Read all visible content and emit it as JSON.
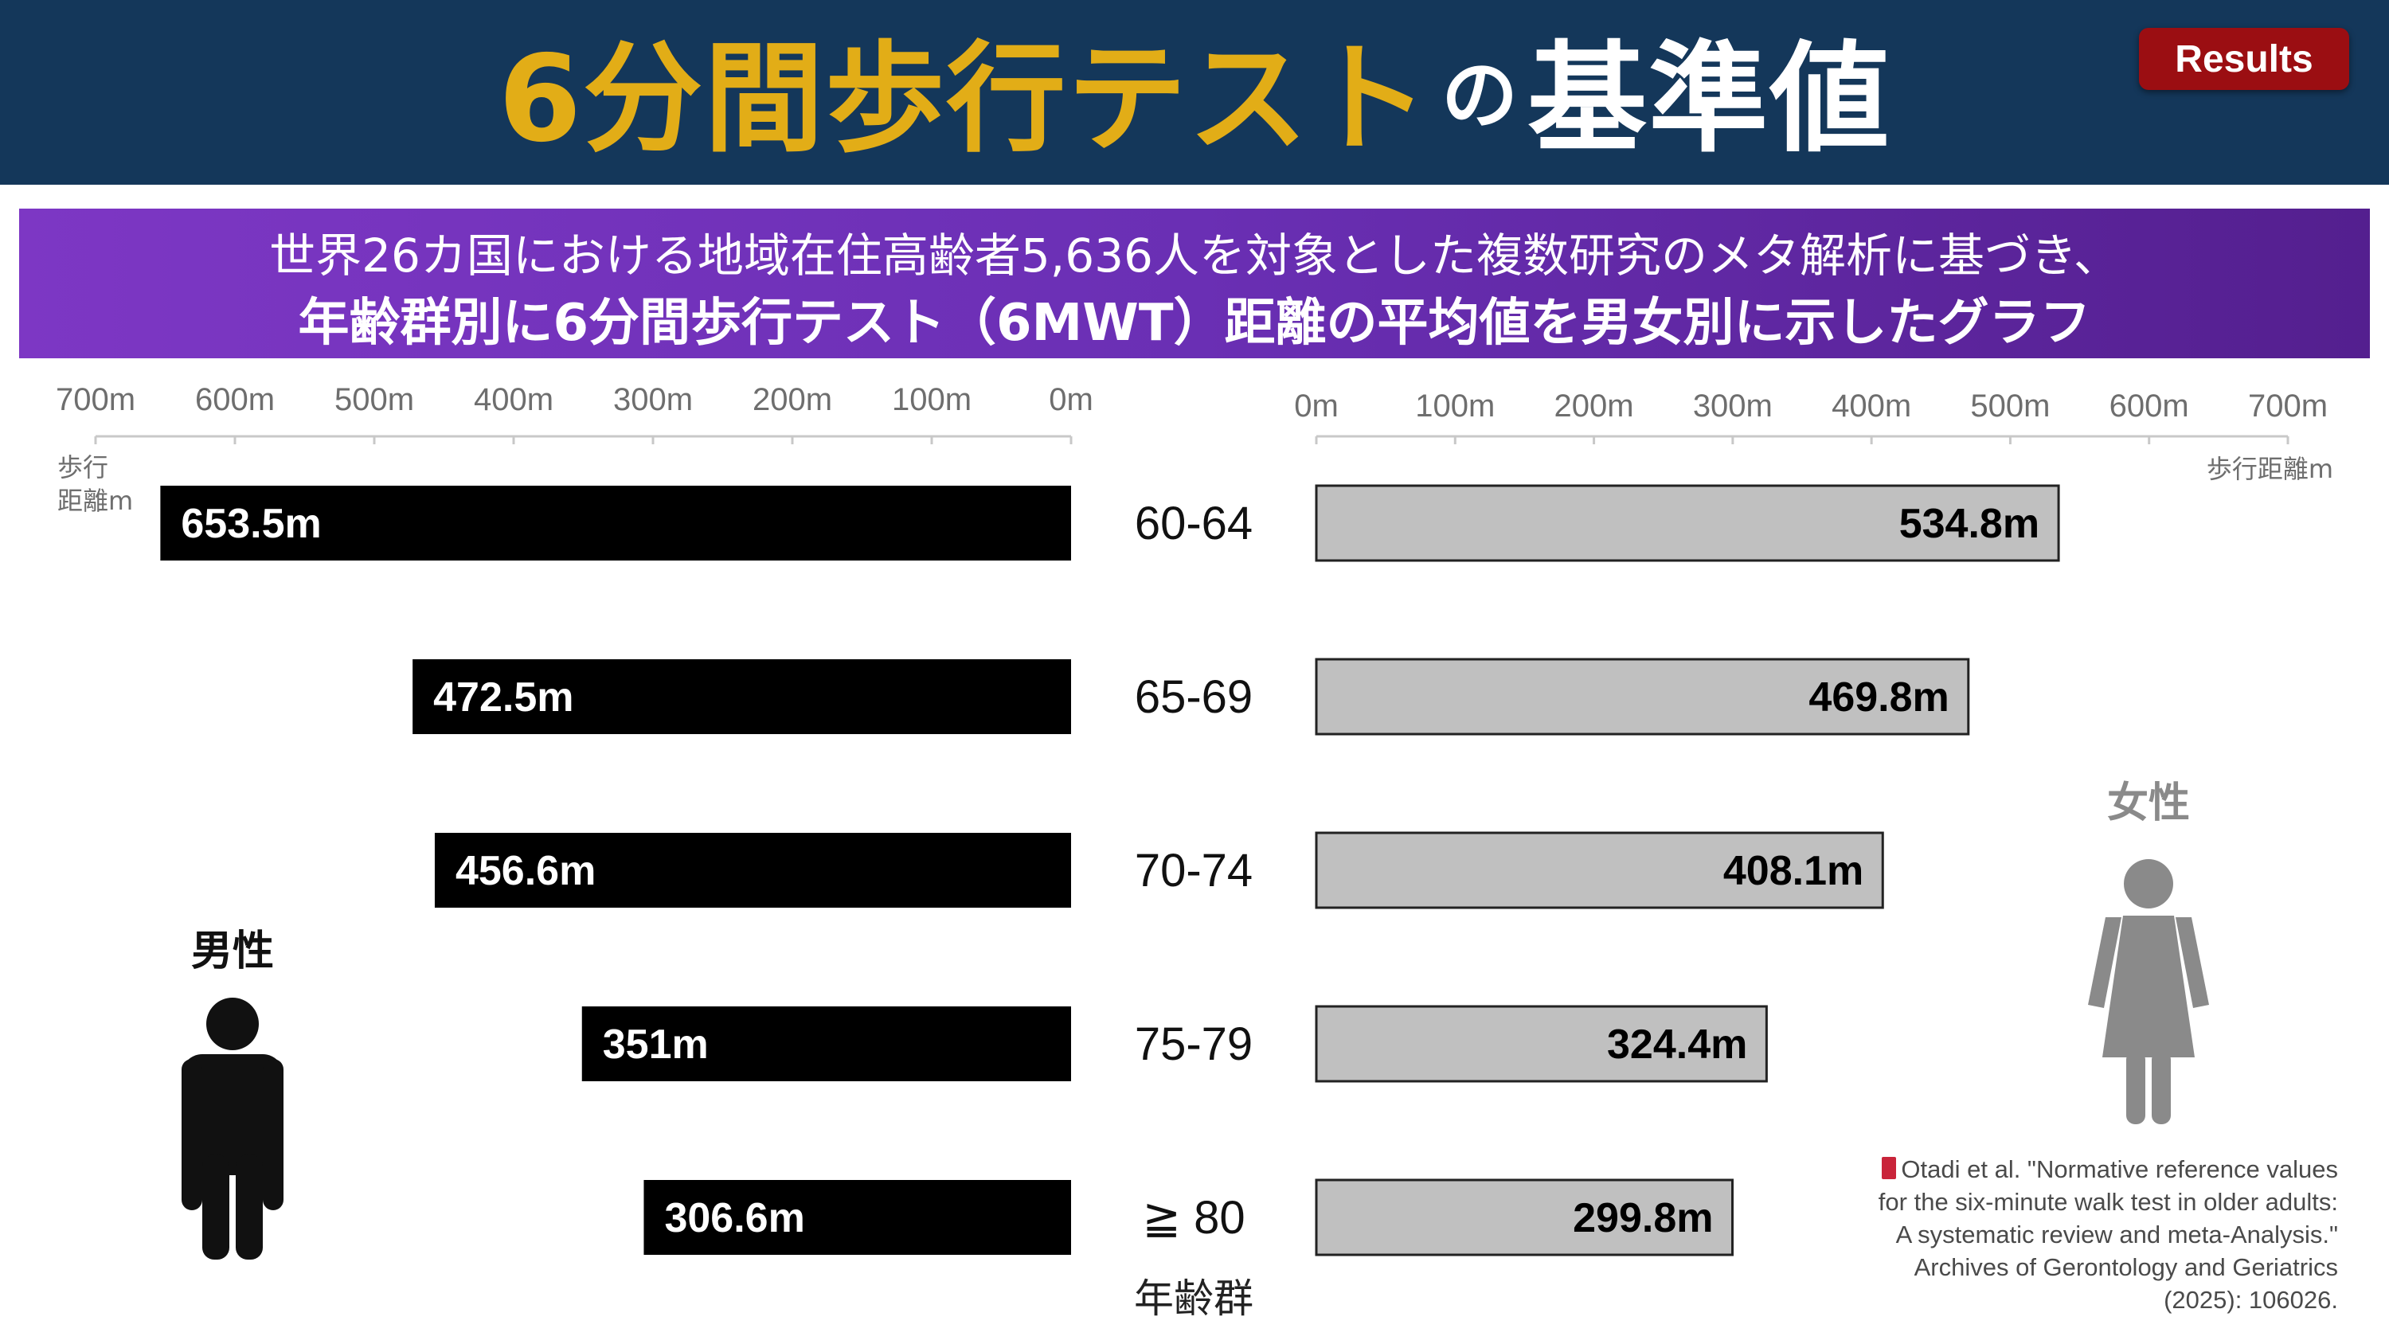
{
  "header": {
    "title_highlight": "6分間歩行テスト",
    "title_particle": "の",
    "title_rest": "基準値",
    "badge": "Results",
    "accent_color": "#e2ad17",
    "badge_color": "#9b0e12"
  },
  "banner": {
    "line1": "世界26カ国における地域在住高齢者5,636人を対象とした複数研究のメタ解析に基づき、",
    "line2": "年齢群別に6分間歩行テスト（6MWT）距離の平均値を男女別に示したグラフ"
  },
  "chart_data": {
    "type": "bar",
    "orientation": "horizontal-butterfly",
    "categories": [
      "60-64",
      "65-69",
      "70-74",
      "75-79",
      "≧ 80"
    ],
    "category_label": "年齢群",
    "xlabel": "歩行距離m",
    "xlim": [
      0,
      700
    ],
    "ticks": [
      "0m",
      "100m",
      "200m",
      "300m",
      "400m",
      "500m",
      "600m",
      "700m"
    ],
    "series": [
      {
        "name": "男性",
        "values": [
          653.5,
          472.5,
          456.6,
          351,
          306.6
        ],
        "labels": [
          "653.5m",
          "472.5m",
          "456.6m",
          "351m",
          "306.6m"
        ],
        "color": "#000000"
      },
      {
        "name": "女性",
        "values": [
          534.8,
          469.8,
          408.1,
          324.4,
          299.8
        ],
        "labels": [
          "534.8m",
          "469.8m",
          "408.1m",
          "324.4m",
          "299.8m"
        ],
        "color": "#c0c0c0"
      }
    ]
  },
  "citation": {
    "line1": "Otadi et al. \"Normative reference values",
    "line2": "for the six-minute walk test in older adults:",
    "line3": "A systematic review and meta-Analysis.\"",
    "line4": "Archives of Gerontology and Geriatrics",
    "line5": "(2025): 106026."
  }
}
